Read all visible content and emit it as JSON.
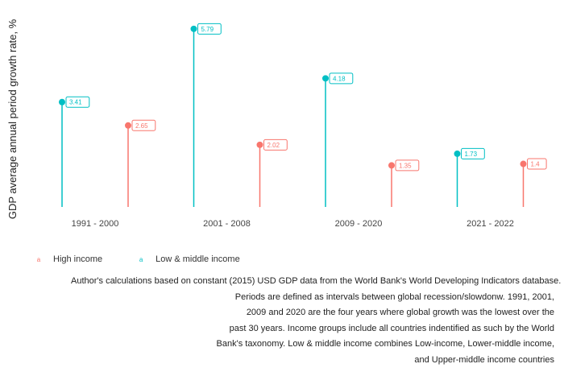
{
  "chart_data": {
    "type": "lollipop",
    "ylabel": "GDP average annual period growth rate, %",
    "xlabel": "",
    "categories": [
      "1991 - 2000",
      "2001 - 2008",
      "2009 - 2020",
      "2021 - 2022"
    ],
    "series": [
      {
        "name": "Low & middle income",
        "color": "#00BFC4",
        "values": [
          3.41,
          5.79,
          4.18,
          1.73
        ]
      },
      {
        "name": "High income",
        "color": "#F8766D",
        "values": [
          2.65,
          2.02,
          1.35,
          1.4
        ]
      }
    ],
    "ylim": [
      0,
      6
    ],
    "grid": false,
    "legend_position": "bottom-left",
    "legend_key_glyph": "a"
  },
  "caption_lines": [
    "Author's calculations based on constant (2015) USD GDP data from the World Bank's World Developing Indicators database.",
    "Periods are defined as intervals between global recession/slowdonw. 1991, 2001,",
    "2009 and 2020 are the four years where global growth was the lowest over the",
    "past 30 years. Income groups include all countries indentified as such by the World",
    "Bank's taxonomy. Low & middle income combines Low-income, Lower-middle income,",
    "and Upper-middle income countries"
  ]
}
